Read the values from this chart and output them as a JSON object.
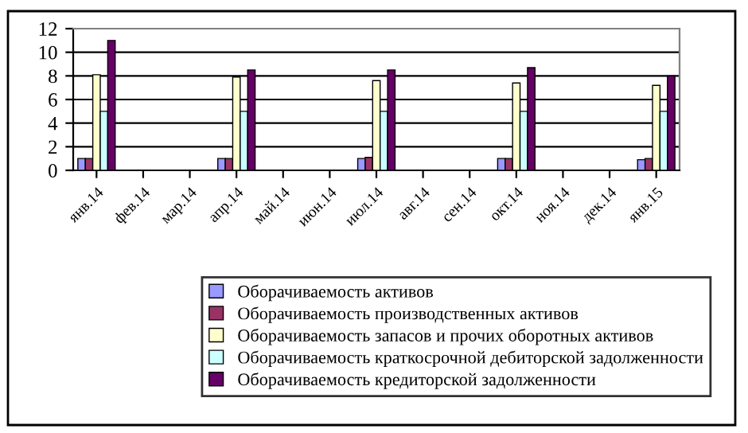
{
  "chart_data": {
    "type": "bar",
    "categories": [
      "янв.14",
      "фев.14",
      "мар.14",
      "апр.14",
      "май.14",
      "июн.14",
      "июл.14",
      "авг.14",
      "сен.14",
      "окт.14",
      "ноя.14",
      "дек.14",
      "янв.15"
    ],
    "series": [
      {
        "name": "Оборачиваемость активов",
        "color": "#9999ff",
        "values": [
          1.0,
          null,
          null,
          1.0,
          null,
          null,
          1.0,
          null,
          null,
          1.0,
          null,
          null,
          0.9
        ]
      },
      {
        "name": "Оборачиваемость производственных активов",
        "color": "#993366",
        "values": [
          1.0,
          null,
          null,
          1.0,
          null,
          null,
          1.1,
          null,
          null,
          1.0,
          null,
          null,
          1.0
        ]
      },
      {
        "name": "Оборачиваемость запасов и прочих оборотных активов",
        "color": "#ffffcc",
        "values": [
          8.1,
          null,
          null,
          7.9,
          null,
          null,
          7.6,
          null,
          null,
          7.4,
          null,
          null,
          7.2
        ]
      },
      {
        "name": "Оборачиваемость краткосрочной дебиторской задолженности",
        "color": "#ccffff",
        "values": [
          5.0,
          null,
          null,
          5.0,
          null,
          null,
          5.0,
          null,
          null,
          5.0,
          null,
          null,
          5.0
        ]
      },
      {
        "name": "Оборачиваемость кредиторской задолженности",
        "color": "#660066",
        "values": [
          11.0,
          null,
          null,
          8.5,
          null,
          null,
          8.5,
          null,
          null,
          8.7,
          null,
          null,
          8.0
        ]
      }
    ],
    "ylim": [
      0,
      12
    ],
    "yticks": [
      0,
      2,
      4,
      6,
      8,
      10,
      12
    ],
    "grid": "y",
    "legend": "bottom"
  }
}
